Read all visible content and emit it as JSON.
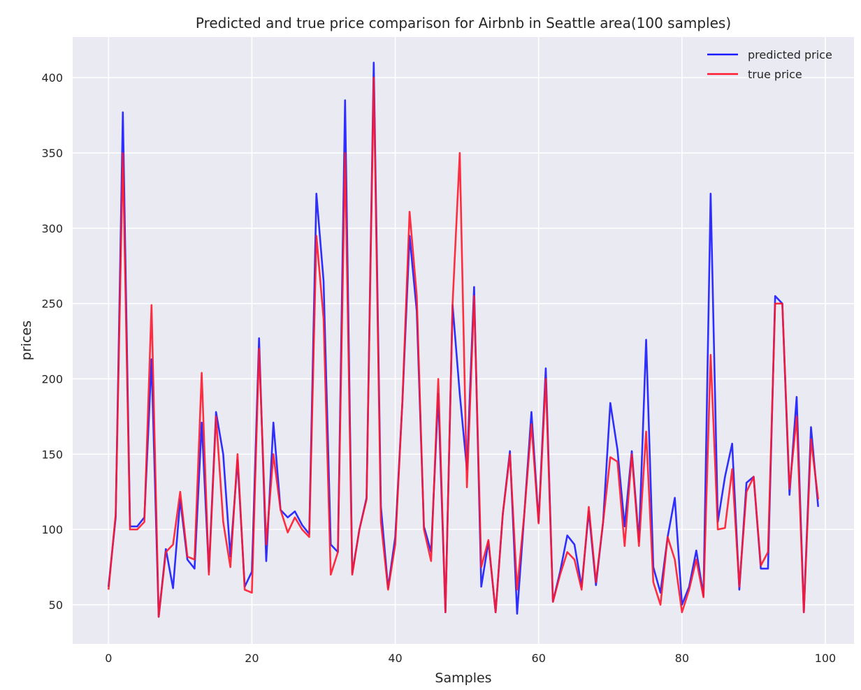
{
  "chart_data": {
    "type": "line",
    "title": "Predicted and true price comparison for Airbnb in Seattle area(100 samples)",
    "xlabel": "Samples",
    "ylabel": "prices",
    "xlim": [
      -5,
      104
    ],
    "ylim": [
      24,
      427
    ],
    "xticks": [
      0,
      20,
      40,
      60,
      80,
      100
    ],
    "yticks": [
      50,
      100,
      150,
      200,
      250,
      300,
      350,
      400
    ],
    "grid": true,
    "legend_position": "top-right",
    "background_color": "#EAEAF2",
    "grid_color": "#FFFFFF",
    "series": [
      {
        "name": "predicted price",
        "color": "#1A1AFF",
        "values": [
          62,
          108,
          377,
          102,
          102,
          108,
          213,
          42,
          87,
          61,
          120,
          80,
          74,
          171,
          72,
          178,
          150,
          82,
          146,
          62,
          72,
          227,
          79,
          171,
          113,
          108,
          112,
          103,
          97,
          323,
          265,
          90,
          85,
          385,
          71,
          100,
          121,
          410,
          115,
          61,
          95,
          185,
          295,
          245,
          102,
          85,
          190,
          45,
          249,
          190,
          140,
          261,
          62,
          92,
          45,
          110,
          152,
          44,
          110,
          178,
          105,
          207,
          52,
          72,
          96,
          90,
          62,
          112,
          63,
          105,
          184,
          153,
          102,
          152,
          92,
          226,
          75,
          58,
          95,
          121,
          50,
          62,
          86,
          56,
          323,
          105,
          135,
          157,
          60,
          131,
          135,
          74,
          74,
          255,
          250,
          123,
          188,
          45,
          168,
          115
        ]
      },
      {
        "name": "true price",
        "color": "#FF1A2E",
        "values": [
          60,
          110,
          350,
          100,
          100,
          105,
          249,
          42,
          85,
          90,
          125,
          82,
          80,
          204,
          70,
          175,
          105,
          75,
          150,
          60,
          58,
          220,
          90,
          150,
          113,
          98,
          108,
          100,
          95,
          295,
          240,
          70,
          85,
          350,
          70,
          100,
          120,
          400,
          105,
          60,
          90,
          185,
          311,
          255,
          100,
          79,
          200,
          45,
          250,
          350,
          128,
          255,
          75,
          93,
          45,
          110,
          150,
          60,
          110,
          170,
          104,
          200,
          52,
          70,
          85,
          80,
          60,
          115,
          65,
          105,
          148,
          145,
          89,
          150,
          89,
          165,
          65,
          50,
          95,
          80,
          45,
          60,
          80,
          55,
          216,
          100,
          101,
          140,
          62,
          125,
          135,
          76,
          85,
          250,
          250,
          127,
          175,
          45,
          160,
          120
        ]
      }
    ]
  }
}
